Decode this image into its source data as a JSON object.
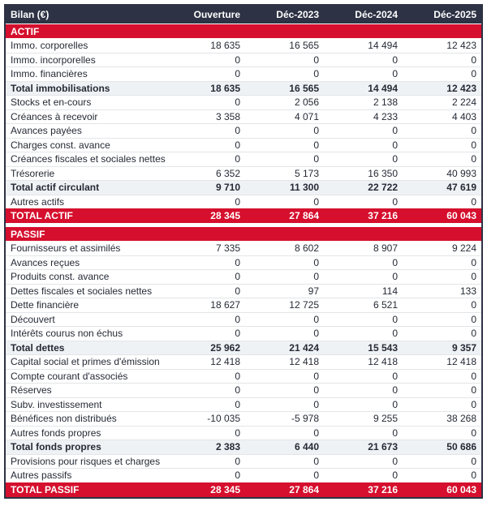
{
  "colors": {
    "header_bg": "#2d3244",
    "band_red": "#d50f2d",
    "subtotal_bg": "#eff2f5",
    "separator": "#e3e5e8",
    "text": "#252a35",
    "band_text": "#ffffff"
  },
  "header": {
    "title": "Bilan (€)",
    "columns": [
      "Ouverture",
      "Déc-2023",
      "Déc-2024",
      "Déc-2025"
    ]
  },
  "rows": [
    {
      "type": "section",
      "label": "ACTIF"
    },
    {
      "type": "normal",
      "label": "Immo. corporelles",
      "values": [
        "18 635",
        "16 565",
        "14 494",
        "12 423"
      ]
    },
    {
      "type": "normal",
      "label": "Immo. incorporelles",
      "values": [
        "0",
        "0",
        "0",
        "0"
      ]
    },
    {
      "type": "normal",
      "label": "Immo. financières",
      "values": [
        "0",
        "0",
        "0",
        "0"
      ]
    },
    {
      "type": "subtotal",
      "label": "Total immobilisations",
      "values": [
        "18 635",
        "16 565",
        "14 494",
        "12 423"
      ]
    },
    {
      "type": "normal",
      "label": "Stocks et en-cours",
      "values": [
        "0",
        "2 056",
        "2 138",
        "2 224"
      ]
    },
    {
      "type": "normal",
      "label": "Créances à recevoir",
      "values": [
        "3 358",
        "4 071",
        "4 233",
        "4 403"
      ]
    },
    {
      "type": "normal",
      "label": "Avances payées",
      "values": [
        "0",
        "0",
        "0",
        "0"
      ]
    },
    {
      "type": "normal",
      "label": "Charges const. avance",
      "values": [
        "0",
        "0",
        "0",
        "0"
      ]
    },
    {
      "type": "normal",
      "label": "Créances fiscales et sociales nettes",
      "values": [
        "0",
        "0",
        "0",
        "0"
      ]
    },
    {
      "type": "normal",
      "label": "Trésorerie",
      "values": [
        "6 352",
        "5 173",
        "16 350",
        "40 993"
      ]
    },
    {
      "type": "subtotal",
      "label": "Total actif circulant",
      "values": [
        "9 710",
        "11 300",
        "22 722",
        "47 619"
      ]
    },
    {
      "type": "normal",
      "label": "Autres actifs",
      "values": [
        "0",
        "0",
        "0",
        "0"
      ]
    },
    {
      "type": "grand",
      "label": "TOTAL ACTIF",
      "values": [
        "28 345",
        "27 864",
        "37 216",
        "60 043"
      ]
    },
    {
      "type": "gap"
    },
    {
      "type": "section",
      "label": "PASSIF"
    },
    {
      "type": "normal",
      "label": "Fournisseurs et assimilés",
      "values": [
        "7 335",
        "8 602",
        "8 907",
        "9 224"
      ]
    },
    {
      "type": "normal",
      "label": "Avances reçues",
      "values": [
        "0",
        "0",
        "0",
        "0"
      ]
    },
    {
      "type": "normal",
      "label": "Produits const. avance",
      "values": [
        "0",
        "0",
        "0",
        "0"
      ]
    },
    {
      "type": "normal",
      "label": "Dettes fiscales et sociales nettes",
      "values": [
        "0",
        "97",
        "114",
        "133"
      ]
    },
    {
      "type": "normal",
      "label": "Dette financière",
      "values": [
        "18 627",
        "12 725",
        "6 521",
        "0"
      ]
    },
    {
      "type": "normal",
      "label": "Découvert",
      "values": [
        "0",
        "0",
        "0",
        "0"
      ]
    },
    {
      "type": "normal",
      "label": "Intérêts courus non échus",
      "values": [
        "0",
        "0",
        "0",
        "0"
      ]
    },
    {
      "type": "subtotal",
      "label": "Total dettes",
      "values": [
        "25 962",
        "21 424",
        "15 543",
        "9 357"
      ]
    },
    {
      "type": "normal",
      "label": "Capital social et primes d'émission",
      "values": [
        "12 418",
        "12 418",
        "12 418",
        "12 418"
      ]
    },
    {
      "type": "normal",
      "label": "Compte courant d'associés",
      "values": [
        "0",
        "0",
        "0",
        "0"
      ]
    },
    {
      "type": "normal",
      "label": "Réserves",
      "values": [
        "0",
        "0",
        "0",
        "0"
      ]
    },
    {
      "type": "normal",
      "label": "Subv. investissement",
      "values": [
        "0",
        "0",
        "0",
        "0"
      ]
    },
    {
      "type": "normal",
      "label": "Bénéfices non distribués",
      "values": [
        "-10 035",
        "-5 978",
        "9 255",
        "38 268"
      ]
    },
    {
      "type": "normal",
      "label": "Autres fonds propres",
      "values": [
        "0",
        "0",
        "0",
        "0"
      ]
    },
    {
      "type": "subtotal",
      "label": "Total fonds propres",
      "values": [
        "2 383",
        "6 440",
        "21 673",
        "50 686"
      ]
    },
    {
      "type": "normal",
      "label": "Provisions pour risques et charges",
      "values": [
        "0",
        "0",
        "0",
        "0"
      ]
    },
    {
      "type": "normal",
      "label": "Autres passifs",
      "values": [
        "0",
        "0",
        "0",
        "0"
      ]
    },
    {
      "type": "grand",
      "label": "TOTAL PASSIF",
      "values": [
        "28 345",
        "27 864",
        "37 216",
        "60 043"
      ]
    }
  ]
}
